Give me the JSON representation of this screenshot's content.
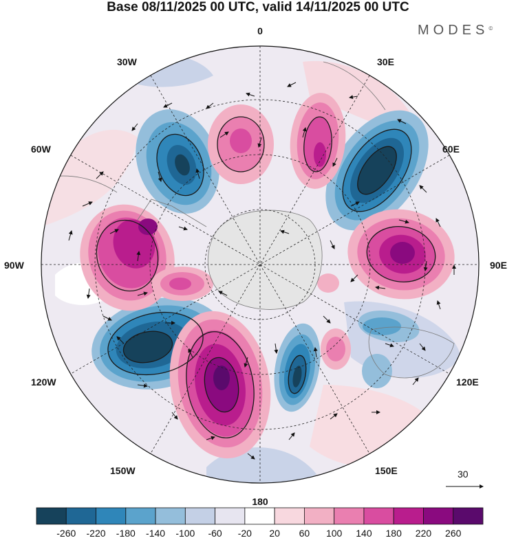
{
  "title": "Base 08/11/2025 00 UTC, valid 14/11/2025 00 UTC",
  "brand": "MODES",
  "brand_mark": "©",
  "longitude_labels": {
    "lon_0": "0",
    "lon_30e": "30E",
    "lon_60e": "60E",
    "lon_90e": "90E",
    "lon_120e": "120E",
    "lon_150e": "150E",
    "lon_180": "180",
    "lon_150w": "150W",
    "lon_120w": "120W",
    "lon_90w": "90W",
    "lon_60w": "60W",
    "lon_30w": "30W"
  },
  "reference_vector": {
    "value": "30"
  },
  "colorbar": {
    "colors": [
      "#16425b",
      "#1f6795",
      "#2f86b9",
      "#5ba3cc",
      "#94bedb",
      "#c4d0e6",
      "#e7e5f0",
      "#ffffff",
      "#f8d8df",
      "#f2b0c4",
      "#ea7fb0",
      "#d94da0",
      "#b91d8d",
      "#8a0a7f",
      "#5a0a6c"
    ],
    "tick_labels": [
      "-260",
      "-220",
      "-180",
      "-140",
      "-100",
      "-60",
      "-20",
      "20",
      "60",
      "100",
      "140",
      "180",
      "220",
      "260"
    ]
  },
  "anomaly_features": [
    {
      "name": "low-1",
      "value": -260
    },
    {
      "name": "low-2",
      "value": -260
    },
    {
      "name": "low-3",
      "value": -220
    },
    {
      "name": "low-4",
      "value": -180
    },
    {
      "name": "low-5",
      "value": -100
    },
    {
      "name": "high-1",
      "value": 220
    },
    {
      "name": "high-2",
      "value": 260
    },
    {
      "name": "high-3",
      "value": 220
    },
    {
      "name": "high-4",
      "value": 180
    },
    {
      "name": "high-5",
      "value": 140
    },
    {
      "name": "high-6",
      "value": 140
    },
    {
      "name": "high-7",
      "value": 100
    }
  ]
}
